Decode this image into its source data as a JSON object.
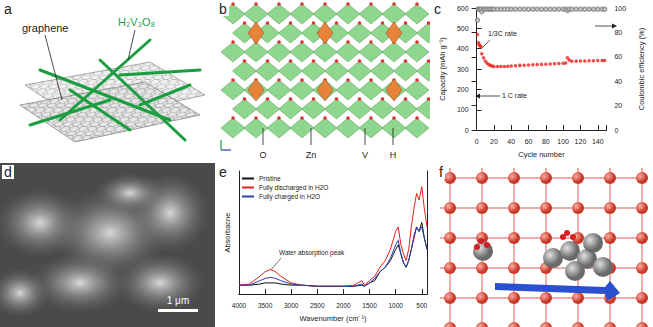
{
  "panel_labels": [
    "a",
    "b",
    "c",
    "d",
    "e",
    "f"
  ],
  "panel_a": {
    "labels": [
      "graphene",
      "H₂V₃O₈"
    ]
  },
  "panel_b": {
    "labels": [
      "O",
      "Zn",
      "V",
      "H"
    ]
  },
  "panel_d": {
    "scale_bar": "1 μm"
  },
  "chart_data": [
    {
      "type": "scatter",
      "x_label": "Cycle number",
      "y_label": "Capacity (mAh g⁻¹)",
      "y2_label": "Coulombic efficiency (%)",
      "annotations": [
        "1/3C rate",
        "1 C rate"
      ],
      "x": [
        1,
        2,
        3,
        4,
        5,
        6,
        8,
        10,
        12,
        14,
        16,
        18,
        20,
        24,
        28,
        32,
        36,
        40,
        45,
        50,
        55,
        60,
        65,
        70,
        75,
        80,
        85,
        90,
        95,
        100,
        103,
        105,
        107,
        110,
        115,
        120,
        125,
        130,
        135,
        140,
        145,
        148
      ],
      "xlim": [
        0,
        150
      ],
      "xticks": [
        0,
        20,
        40,
        60,
        80,
        100,
        120,
        140
      ],
      "ylim": [
        0,
        600
      ],
      "yticks": [
        0,
        100,
        200,
        300,
        400,
        500,
        600
      ],
      "y2lim": [
        0,
        100
      ],
      "y2ticks": [
        0,
        20,
        40,
        60,
        80,
        100
      ],
      "grid": false,
      "series": [
        {
          "color": "#e8201a",
          "marker": "circle",
          "values": [
            470,
            430,
            420,
            415,
            410,
            375,
            355,
            340,
            330,
            322,
            318,
            315,
            313,
            312,
            312,
            313,
            314,
            315,
            316,
            318,
            319,
            320,
            321,
            322,
            323,
            324,
            325,
            326,
            327,
            328,
            330,
            355,
            345,
            338,
            339,
            340,
            340,
            341,
            341,
            342,
            342,
            342
          ]
        },
        {
          "color": "#888888",
          "marker": "emptyCircle",
          "axis": "y2",
          "values": [
            90,
            99,
            99,
            99,
            99,
            97,
            99,
            99,
            99,
            99,
            99,
            99,
            99,
            99,
            99,
            99,
            99,
            99,
            99,
            99,
            99,
            99,
            99,
            99,
            99,
            99,
            99,
            99,
            99,
            99,
            99,
            98,
            99,
            99,
            99,
            99,
            99,
            99,
            99,
            99,
            99,
            99
          ]
        }
      ]
    },
    {
      "type": "line",
      "x_label": "Wavenumber (cm⁻¹)",
      "y_label": "Absorbacne",
      "annotations": [
        "Water absorption peak"
      ],
      "x": [
        4000,
        3800,
        3600,
        3500,
        3400,
        3300,
        3200,
        3000,
        2800,
        2500,
        2000,
        1800,
        1650,
        1600,
        1500,
        1400,
        1300,
        1200,
        1100,
        1000,
        950,
        900,
        850,
        800,
        750,
        700,
        650,
        600,
        550,
        500,
        450,
        400
      ],
      "xlim": [
        4000,
        400
      ],
      "xticks": [
        4000,
        3500,
        3000,
        2500,
        2000,
        1500,
        1000,
        500
      ],
      "ylim": [
        0,
        0.55
      ],
      "tick_labels": "x",
      "grid": false,
      "legend": "upper left",
      "series": [
        {
          "name": "Pristine",
          "color": "#111111",
          "values": [
            0.04,
            0.04,
            0.045,
            0.05,
            0.05,
            0.05,
            0.045,
            0.04,
            0.04,
            0.035,
            0.035,
            0.035,
            0.04,
            0.035,
            0.05,
            0.06,
            0.1,
            0.12,
            0.15,
            0.2,
            0.22,
            0.18,
            0.14,
            0.12,
            0.15,
            0.2,
            0.25,
            0.3,
            0.28,
            0.32,
            0.25,
            0.2
          ]
        },
        {
          "name": "Fully discharged in H2O",
          "color": "#e8201a",
          "values": [
            0.04,
            0.045,
            0.08,
            0.1,
            0.11,
            0.1,
            0.08,
            0.05,
            0.04,
            0.035,
            0.035,
            0.04,
            0.06,
            0.04,
            0.06,
            0.08,
            0.12,
            0.15,
            0.2,
            0.28,
            0.3,
            0.22,
            0.18,
            0.15,
            0.2,
            0.3,
            0.38,
            0.45,
            0.42,
            0.48,
            0.38,
            0.3
          ]
        },
        {
          "name": "Fully charged in H2O",
          "color": "#2a3fb0",
          "values": [
            0.04,
            0.04,
            0.06,
            0.07,
            0.075,
            0.07,
            0.06,
            0.045,
            0.04,
            0.035,
            0.035,
            0.035,
            0.045,
            0.035,
            0.05,
            0.07,
            0.1,
            0.12,
            0.16,
            0.22,
            0.24,
            0.18,
            0.14,
            0.12,
            0.15,
            0.2,
            0.26,
            0.3,
            0.28,
            0.3,
            0.25,
            0.2
          ]
        }
      ]
    }
  ]
}
